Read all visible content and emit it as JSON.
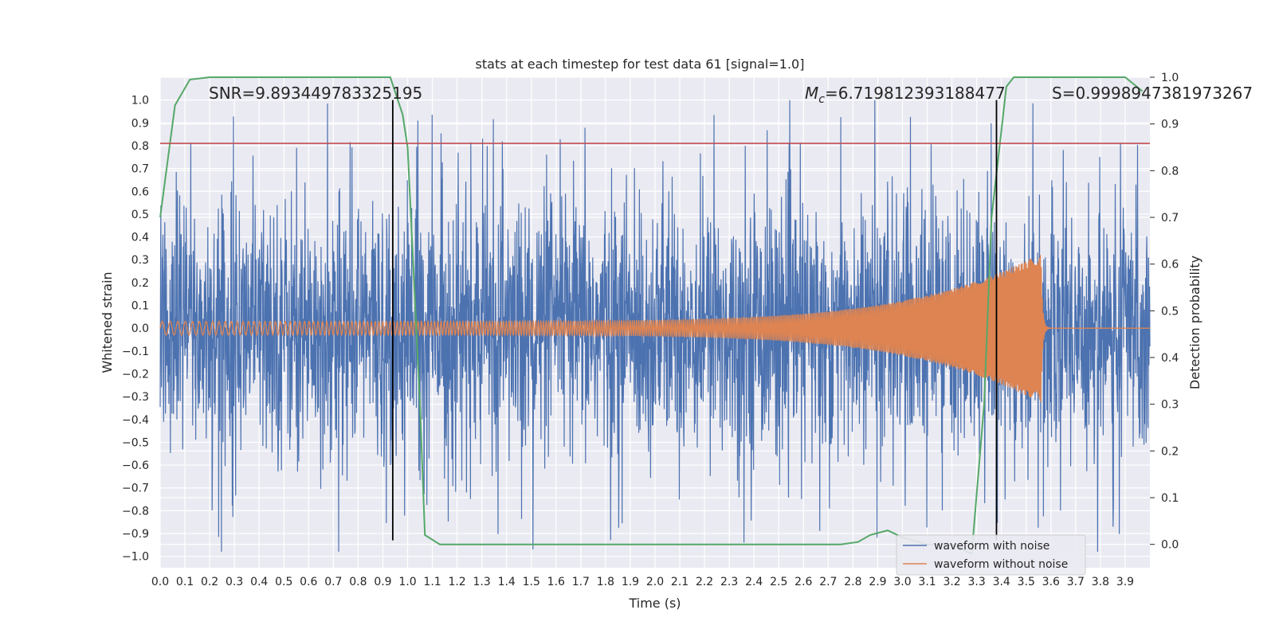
{
  "chart_data": {
    "type": "line",
    "title": "stats at each timestep for test data 61 [signal=1.0]",
    "xlabel": "Time (s)",
    "ylabel": "Whitened strain",
    "y2label": "Detection probability",
    "xlim": [
      0.0,
      4.0
    ],
    "ylim": [
      -1.05,
      1.1
    ],
    "y2lim": [
      -0.05,
      1.0
    ],
    "xticks": [
      "0.0",
      "0.1",
      "0.2",
      "0.3",
      "0.4",
      "0.5",
      "0.6",
      "0.7",
      "0.8",
      "0.9",
      "1.0",
      "1.1",
      "1.2",
      "1.3",
      "1.4",
      "1.5",
      "1.6",
      "1.7",
      "1.8",
      "1.9",
      "2.0",
      "2.1",
      "2.2",
      "2.3",
      "2.4",
      "2.5",
      "2.6",
      "2.7",
      "2.8",
      "2.9",
      "3.0",
      "3.1",
      "3.2",
      "3.3",
      "3.4",
      "3.5",
      "3.6",
      "3.7",
      "3.8",
      "3.9"
    ],
    "yticks": [
      "1.0",
      "0.9",
      "0.8",
      "0.7",
      "0.6",
      "0.5",
      "0.4",
      "0.3",
      "0.2",
      "0.1",
      "0.0",
      "−0.1",
      "−0.2",
      "−0.3",
      "−0.4",
      "−0.5",
      "−0.6",
      "−0.7",
      "−0.8",
      "−0.9",
      "−1.0"
    ],
    "y2ticks": [
      "1.0",
      "0.9",
      "0.8",
      "0.7",
      "0.6",
      "0.5",
      "0.4",
      "0.3",
      "0.2",
      "0.1",
      "0.0"
    ],
    "grid": true,
    "legend_position": "lower right",
    "series": [
      {
        "name": "waveform with noise",
        "color": "#4c72b0",
        "axis": "left",
        "description_values": "noisy whitened strain, amplitude ~ ±0.6 with spikes to ±1.0"
      },
      {
        "name": "waveform without noise",
        "color": "#dd8452",
        "axis": "left",
        "chirp": {
          "start_amp": 0.03,
          "peak_amp": 0.33,
          "merger_time": 3.56,
          "start_freq": 30,
          "end_freq": 260
        }
      },
      {
        "name": "",
        "color": "#55a868",
        "axis": "right",
        "x": [
          0.0,
          0.06,
          0.12,
          0.2,
          0.5,
          0.93,
          0.98,
          1.0,
          1.05,
          1.07,
          1.13,
          1.2,
          1.5,
          2.0,
          2.5,
          2.75,
          2.82,
          2.87,
          2.94,
          3.0,
          3.1,
          3.2,
          3.28,
          3.33,
          3.36,
          3.42,
          3.45,
          3.6,
          3.9,
          3.97
        ],
        "y": [
          0.7,
          0.94,
          0.995,
          1.0,
          1.0,
          1.0,
          0.92,
          0.85,
          0.3,
          0.02,
          0.0,
          0.0,
          0.0,
          0.0,
          0.0,
          0.0,
          0.005,
          0.02,
          0.03,
          0.015,
          0.0,
          0.0,
          -0.02,
          0.3,
          0.7,
          0.98,
          1.0,
          1.0,
          1.0,
          0.97
        ]
      }
    ],
    "hlines": [
      {
        "y": 0.81,
        "color": "#c44e52"
      }
    ],
    "vlines": [
      {
        "x": 0.94,
        "color": "#000000"
      },
      {
        "x": 3.38,
        "color": "#000000"
      }
    ],
    "annotations": {
      "snr": "SNR=9.893449783325195",
      "mc_symbol": "M",
      "mc_sub": "c",
      "mc_value": "=6.719812393188477",
      "s": "S=0.9998947381973267"
    }
  }
}
